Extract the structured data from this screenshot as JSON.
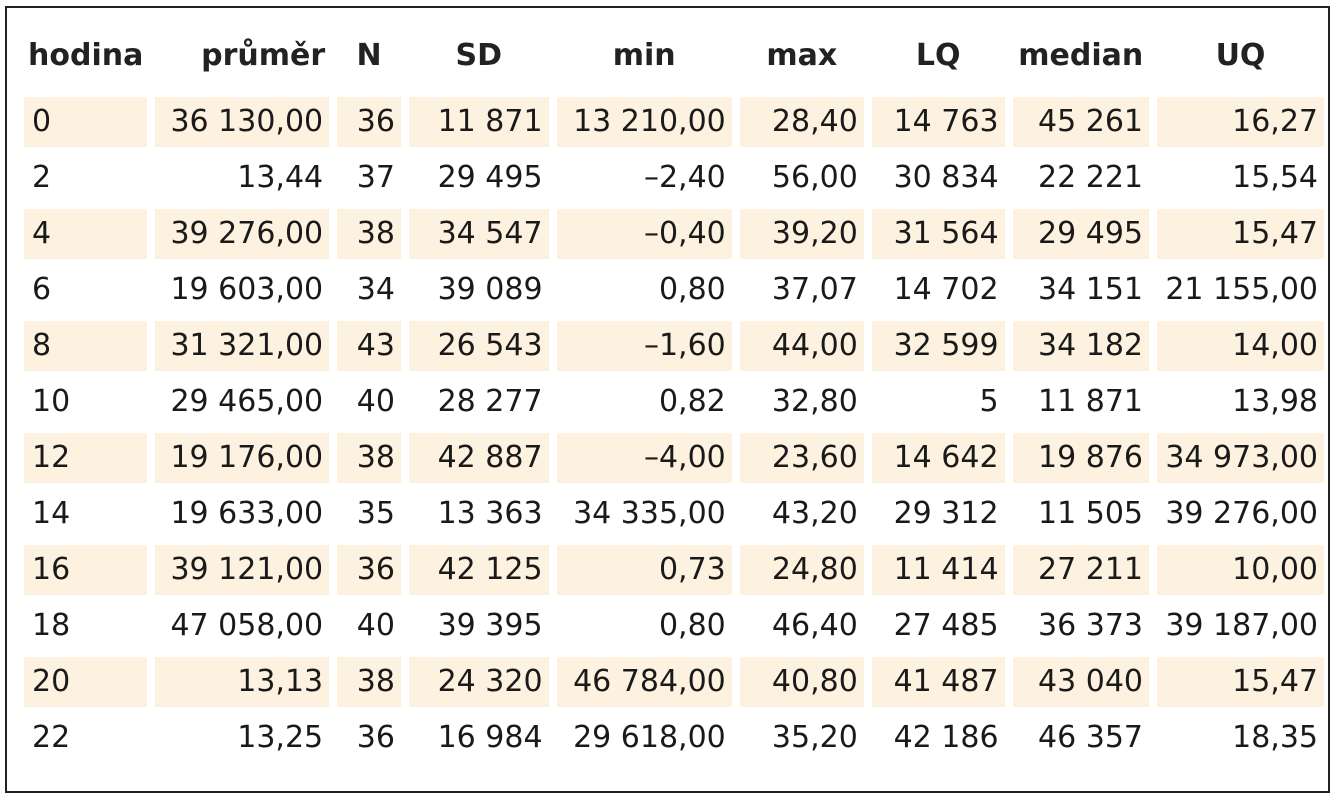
{
  "table": {
    "headers": [
      "hodina",
      "průměr",
      "N",
      "SD",
      "min",
      "max",
      "LQ",
      "median",
      "UQ"
    ],
    "rows": [
      [
        "0",
        "36 130,00",
        "36",
        "11 871",
        "13 210,00",
        "28,40",
        "14 763",
        "45 261",
        "16,27"
      ],
      [
        "2",
        "13,44",
        "37",
        "29 495",
        "–2,40",
        "56,00",
        "30 834",
        "22 221",
        "15,54"
      ],
      [
        "4",
        "39 276,00",
        "38",
        "34 547",
        "–0,40",
        "39,20",
        "31 564",
        "29 495",
        "15,47"
      ],
      [
        "6",
        "19 603,00",
        "34",
        "39 089",
        "0,80",
        "37,07",
        "14 702",
        "34 151",
        "21 155,00"
      ],
      [
        "8",
        "31 321,00",
        "43",
        "26 543",
        "–1,60",
        "44,00",
        "32 599",
        "34 182",
        "14,00"
      ],
      [
        "10",
        "29 465,00",
        "40",
        "28 277",
        "0,82",
        "32,80",
        "5",
        "11 871",
        "13,98"
      ],
      [
        "12",
        "19 176,00",
        "38",
        "42 887",
        "–4,00",
        "23,60",
        "14 642",
        "19 876",
        "34 973,00"
      ],
      [
        "14",
        "19 633,00",
        "35",
        "13 363",
        "34 335,00",
        "43,20",
        "29 312",
        "11 505",
        "39 276,00"
      ],
      [
        "16",
        "39 121,00",
        "36",
        "42 125",
        "0,73",
        "24,80",
        "11 414",
        "27 211",
        "10,00"
      ],
      [
        "18",
        "47 058,00",
        "40",
        "39 395",
        "0,80",
        "46,40",
        "27 485",
        "36 373",
        "39 187,00"
      ],
      [
        "20",
        "13,13",
        "38",
        "24 320",
        "46 784,00",
        "40,80",
        "41 487",
        "43 040",
        "15,47"
      ],
      [
        "22",
        "13,25",
        "36",
        "16 984",
        "29 618,00",
        "35,20",
        "42 186",
        "46 357",
        "18,35"
      ]
    ],
    "colors": {
      "shade": "#fdf1e0",
      "border": "#222222",
      "text": "#1a1a1a"
    }
  }
}
